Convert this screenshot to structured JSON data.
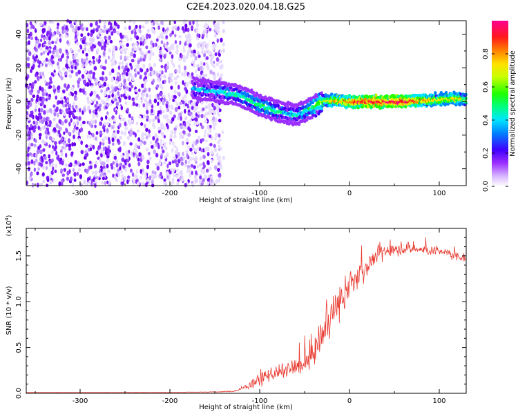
{
  "title": "C2E4.2023.020.04.18.G25",
  "chart_data": [
    {
      "type": "heatmap",
      "xlabel": "Height of straight line (km)",
      "ylabel": "Frequency (Hz)",
      "xlim": [
        -360,
        130
      ],
      "ylim": [
        -50,
        48
      ],
      "xticks": [
        -300,
        -200,
        -100,
        0,
        100
      ],
      "yticks": [
        -40,
        -20,
        0,
        20,
        40
      ],
      "noise_region_x": [
        -360,
        -140
      ],
      "signal_track": {
        "x": [
          -175,
          -150,
          -125,
          -100,
          -85,
          -70,
          -60,
          -50,
          -40,
          -30,
          -20,
          0,
          20,
          40,
          60,
          80,
          100,
          120,
          130
        ],
        "freq": [
          8,
          6,
          4,
          -2,
          -5,
          -7,
          -8,
          -6,
          -3,
          0,
          1,
          0,
          0,
          0,
          0,
          1,
          1,
          2,
          1
        ],
        "amplitude": [
          0.3,
          0.35,
          0.4,
          0.45,
          0.4,
          0.35,
          0.35,
          0.4,
          0.5,
          0.6,
          0.7,
          0.8,
          0.9,
          0.9,
          0.9,
          0.75,
          0.7,
          0.7,
          0.6
        ]
      },
      "colorbar": {
        "label": "Normalized spectral amplitude",
        "range": [
          0,
          1
        ],
        "ticks": [
          "0.0",
          "0.2",
          "0.4",
          "0.6",
          "0.8"
        ]
      }
    },
    {
      "type": "line",
      "xlabel": "Height of straight line (km)",
      "ylabel": "SNR (10 * v/v)",
      "multiplier_label": "(x10",
      "multiplier_exp": "4",
      "multiplier_close": ")",
      "xlim": [
        -360,
        130
      ],
      "ylim": [
        0,
        1.8
      ],
      "xticks": [
        -300,
        -200,
        -100,
        0,
        100
      ],
      "yticks": [
        "0.0",
        "0.5",
        "1.0",
        "1.5"
      ],
      "color": "#e8392f",
      "series": [
        {
          "x": [
            -360,
            -300,
            -250,
            -200,
            -150,
            -130,
            -120,
            -110,
            -100,
            -90,
            -80,
            -70,
            -60,
            -50,
            -40,
            -30,
            -20,
            -10,
            0,
            10,
            20,
            30,
            40,
            60,
            80,
            100,
            120,
            130
          ],
          "mean": [
            0.01,
            0.01,
            0.01,
            0.01,
            0.015,
            0.02,
            0.05,
            0.1,
            0.15,
            0.2,
            0.22,
            0.25,
            0.28,
            0.32,
            0.45,
            0.65,
            0.85,
            1.0,
            1.15,
            1.3,
            1.4,
            1.5,
            1.55,
            1.58,
            1.57,
            1.55,
            1.5,
            1.48
          ],
          "noise": [
            0.003,
            0.003,
            0.003,
            0.003,
            0.005,
            0.01,
            0.03,
            0.06,
            0.08,
            0.1,
            0.1,
            0.12,
            0.12,
            0.15,
            0.2,
            0.25,
            0.25,
            0.25,
            0.2,
            0.18,
            0.15,
            0.12,
            0.1,
            0.08,
            0.08,
            0.07,
            0.07,
            0.06
          ]
        }
      ]
    }
  ]
}
